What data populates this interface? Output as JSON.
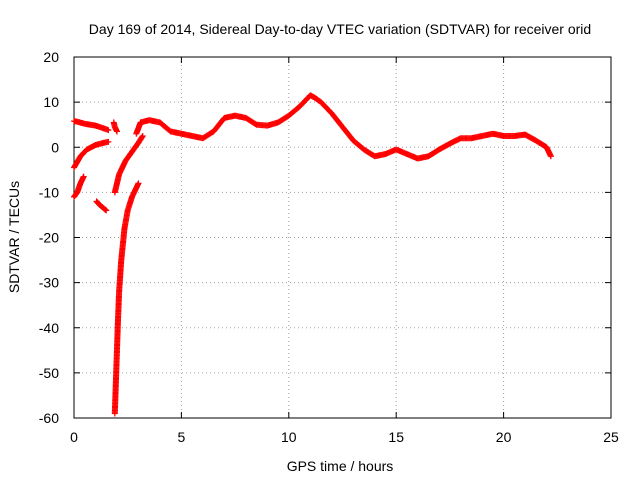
{
  "chart_data": {
    "type": "scatter",
    "title": "Day 169 of 2014, Sidereal Day-to-day VTEC variation (SDTVAR) for receiver orid",
    "xlabel": "GPS time / hours",
    "ylabel": "SDTVAR / TECUs",
    "xlim": [
      0,
      25
    ],
    "ylim": [
      -60,
      20
    ],
    "xticks": [
      0,
      5,
      10,
      15,
      20,
      25
    ],
    "yticks": [
      -60,
      -50,
      -40,
      -30,
      -20,
      -10,
      0,
      10,
      20
    ],
    "xtick_labels": [
      "0",
      "5",
      "10",
      "15",
      "20",
      "25"
    ],
    "ytick_labels": [
      "-60",
      "-50",
      "-40",
      "-30",
      "-20",
      "-10",
      "0",
      "10",
      "20"
    ],
    "grid": true,
    "marker": "+",
    "color": "#ff0000",
    "series": [
      {
        "name": "SDTVAR",
        "segments": [
          {
            "x": [
              0.0,
              0.2,
              0.5,
              1.0,
              1.5,
              1.6
            ],
            "y": [
              5.8,
              5.6,
              5.2,
              4.8,
              4.0,
              3.8
            ]
          },
          {
            "x": [
              0.0,
              0.3,
              0.6,
              1.0,
              1.4,
              1.6
            ],
            "y": [
              -4.5,
              -2.0,
              -0.5,
              0.5,
              1.0,
              1.2
            ]
          },
          {
            "x": [
              0.0,
              0.15,
              0.3,
              0.45
            ],
            "y": [
              -11.0,
              -10.0,
              -8.0,
              -6.5
            ]
          },
          {
            "x": [
              1.05,
              1.2,
              1.4,
              1.5
            ],
            "y": [
              -12.0,
              -12.8,
              -13.6,
              -14.0
            ]
          },
          {
            "x": [
              1.85,
              1.9,
              2.0
            ],
            "y": [
              5.5,
              4.5,
              3.5
            ]
          },
          {
            "x": [
              1.9,
              1.95,
              2.0,
              2.05,
              2.1,
              2.2,
              2.35,
              2.5,
              2.7,
              3.0
            ],
            "y": [
              -59.0,
              -52.0,
              -45.0,
              -38.0,
              -32.0,
              -25.0,
              -18.0,
              -14.0,
              -11.0,
              -8.0
            ]
          },
          {
            "x": [
              1.9,
              2.1,
              2.4,
              2.7,
              3.0,
              3.2
            ],
            "y": [
              -10.0,
              -6.0,
              -3.0,
              -1.0,
              1.0,
              2.5
            ]
          },
          {
            "x": [
              2.9,
              3.1,
              3.5,
              4.0,
              4.5,
              5.0,
              5.5,
              6.0,
              6.5,
              7.0,
              7.5,
              8.0,
              8.5,
              9.0,
              9.5,
              10.0,
              10.5,
              11.0,
              11.2,
              11.5,
              12.0,
              12.5,
              13.0,
              13.5,
              14.0,
              14.5,
              15.0,
              15.5,
              16.0,
              16.5,
              17.0,
              17.5,
              18.0,
              18.5,
              19.0,
              19.5,
              20.0,
              20.5,
              21.0,
              21.5,
              22.0,
              22.2
            ],
            "y": [
              3.0,
              5.5,
              6.0,
              5.5,
              3.5,
              3.0,
              2.5,
              2.0,
              3.5,
              6.5,
              7.0,
              6.5,
              5.0,
              4.8,
              5.5,
              7.0,
              9.0,
              11.5,
              11.0,
              10.0,
              7.5,
              4.5,
              1.5,
              -0.5,
              -2.0,
              -1.5,
              -0.5,
              -1.5,
              -2.5,
              -2.0,
              -0.5,
              0.8,
              2.0,
              2.0,
              2.5,
              3.0,
              2.5,
              2.5,
              2.8,
              1.5,
              0.0,
              -2.0
            ]
          }
        ]
      }
    ]
  }
}
